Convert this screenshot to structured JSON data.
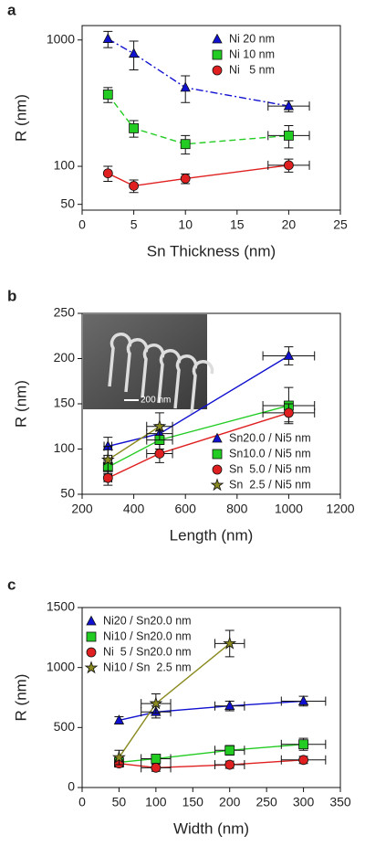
{
  "chart_data": [
    {
      "type": "line",
      "label": "a",
      "x_label": "Sn Thickness (nm)",
      "y_label": "R (nm)",
      "yscale": "log",
      "xlim": [
        0,
        25
      ],
      "xticks": [
        0,
        5,
        10,
        15,
        20,
        25
      ],
      "ylim": [
        45,
        1300
      ],
      "yticks": [
        50,
        100,
        1000
      ],
      "legend": "upper right",
      "series": [
        {
          "name": "Ni 20 nm",
          "color": "#1010d0",
          "marker": "triangle",
          "linestyle": "dashdot",
          "x": [
            2.5,
            5,
            10,
            20
          ],
          "values": [
            1020,
            780,
            420,
            300
          ],
          "yerr": [
            150,
            200,
            100,
            30
          ],
          "xerr": [
            null,
            null,
            null,
            2
          ]
        },
        {
          "name": "Ni 10 nm",
          "color": "#22cc22",
          "marker": "square",
          "linestyle": "dashed",
          "x": [
            2.5,
            5,
            10,
            20
          ],
          "values": [
            370,
            200,
            150,
            175
          ],
          "yerr": [
            50,
            30,
            25,
            35
          ],
          "xerr": [
            null,
            null,
            null,
            2
          ]
        },
        {
          "name": "Ni   5 nm",
          "color": "#e02020",
          "marker": "circle",
          "linestyle": "solid",
          "x": [
            2.5,
            5,
            10,
            20
          ],
          "values": [
            88,
            70,
            80,
            102
          ],
          "yerr": [
            12,
            8,
            7,
            12
          ],
          "xerr": [
            null,
            null,
            null,
            2
          ]
        }
      ]
    },
    {
      "type": "line",
      "label": "b",
      "x_label": "Length (nm)",
      "y_label": "R (nm)",
      "xlim": [
        200,
        1200
      ],
      "xticks": [
        200,
        400,
        600,
        800,
        1000,
        1200
      ],
      "ylim": [
        50,
        250
      ],
      "yticks": [
        50,
        100,
        150,
        200,
        250
      ],
      "legend": "lower right",
      "inset_label": "200 nm",
      "series": [
        {
          "name": "Sn20.0 / Ni5 nm",
          "color": "#1010d0",
          "marker": "triangle",
          "linestyle": "solid",
          "x": [
            300,
            500,
            1000
          ],
          "values": [
            103,
            117,
            203
          ],
          "yerr": [
            10,
            10,
            10
          ],
          "xerr": [
            15,
            50,
            100
          ]
        },
        {
          "name": "Sn10.0 / Ni5 nm",
          "color": "#22cc22",
          "marker": "square",
          "linestyle": "solid",
          "x": [
            300,
            500,
            1000
          ],
          "values": [
            80,
            110,
            148
          ],
          "yerr": [
            10,
            10,
            20
          ],
          "xerr": [
            15,
            50,
            100
          ]
        },
        {
          "name": "Sn  5.0 / Ni5 nm",
          "color": "#e02020",
          "marker": "circle",
          "linestyle": "solid",
          "x": [
            300,
            500,
            1000
          ],
          "values": [
            68,
            95,
            140
          ],
          "yerr": [
            8,
            10,
            10
          ],
          "xerr": [
            15,
            50,
            100
          ]
        },
        {
          "name": "Sn  2.5 / Ni5 nm",
          "color": "#8a8a20",
          "marker": "star",
          "linestyle": "solid",
          "x": [
            300,
            500
          ],
          "values": [
            88,
            125
          ],
          "yerr": [
            15,
            15
          ],
          "xerr": [
            15,
            50
          ]
        }
      ]
    },
    {
      "type": "line",
      "label": "c",
      "x_label": "Width (nm)",
      "y_label": "R (nm)",
      "xlim": [
        0,
        350
      ],
      "xticks": [
        0,
        50,
        100,
        150,
        200,
        250,
        300,
        350
      ],
      "ylim": [
        0,
        1500
      ],
      "yticks": [
        0,
        500,
        1000,
        1500
      ],
      "legend": "upper left",
      "series": [
        {
          "name": "Ni20 / Sn20.0 nm",
          "color": "#1010d0",
          "marker": "triangle",
          "linestyle": "solid",
          "x": [
            50,
            100,
            200,
            300
          ],
          "values": [
            560,
            630,
            680,
            720
          ],
          "yerr": [
            30,
            50,
            40,
            40
          ],
          "xerr": [
            null,
            20,
            20,
            30
          ]
        },
        {
          "name": "Ni10 / Sn20.0 nm",
          "color": "#22cc22",
          "marker": "square",
          "linestyle": "solid",
          "x": [
            50,
            100,
            200,
            300
          ],
          "values": [
            210,
            240,
            310,
            360
          ],
          "yerr": [
            30,
            30,
            40,
            50
          ],
          "xerr": [
            null,
            20,
            20,
            30
          ]
        },
        {
          "name": "Ni  5 / Sn20.0 nm",
          "color": "#e02020",
          "marker": "circle",
          "linestyle": "solid",
          "x": [
            50,
            100,
            200,
            300
          ],
          "values": [
            200,
            165,
            190,
            230
          ],
          "yerr": [
            30,
            30,
            30,
            30
          ],
          "xerr": [
            null,
            20,
            20,
            30
          ]
        },
        {
          "name": "Ni10 / Sn  2.5 nm",
          "color": "#8a8a20",
          "marker": "star",
          "linestyle": "solid",
          "x": [
            50,
            100,
            200
          ],
          "values": [
            250,
            700,
            1200
          ],
          "yerr": [
            60,
            80,
            110
          ],
          "xerr": [
            null,
            20,
            20
          ]
        }
      ]
    }
  ]
}
